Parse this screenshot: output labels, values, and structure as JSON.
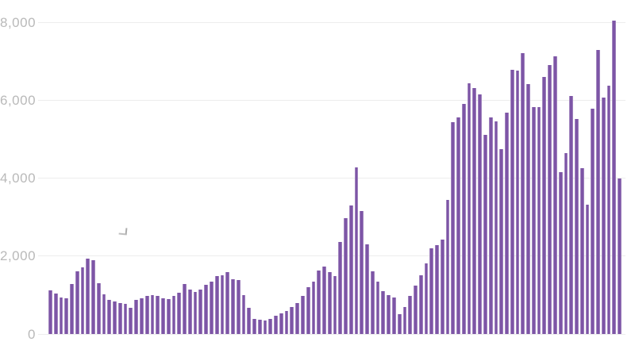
{
  "chart_data": {
    "type": "bar",
    "title": "",
    "xlabel": "",
    "ylabel": "",
    "ylim": [
      0,
      8000
    ],
    "y_ticks": [
      0,
      2000,
      4000,
      6000,
      8000
    ],
    "y_tick_labels": [
      "0",
      "2,000",
      "4,000",
      "6,000",
      "8,000"
    ],
    "x_axis_labels_visible": false,
    "grid": "horizontal",
    "legend": "none",
    "bar_color": "#7d55a6",
    "gridline_color": "#ededed",
    "tick_label_color": "#b9b9b9",
    "background_color": "#ffffff",
    "values": [
      1120,
      1040,
      940,
      920,
      1280,
      1610,
      1710,
      1930,
      1890,
      1300,
      1020,
      880,
      840,
      790,
      770,
      670,
      880,
      920,
      980,
      1000,
      980,
      920,
      900,
      980,
      1060,
      1280,
      1140,
      1080,
      1140,
      1260,
      1340,
      1490,
      1510,
      1590,
      1410,
      1380,
      1000,
      670,
      390,
      370,
      350,
      390,
      470,
      530,
      600,
      700,
      800,
      980,
      1210,
      1340,
      1630,
      1730,
      1590,
      1490,
      2360,
      2970,
      3290,
      4280,
      3160,
      2300,
      1610,
      1340,
      1100,
      1000,
      930,
      510,
      690,
      980,
      1240,
      1510,
      1810,
      2200,
      2280,
      2420,
      3450,
      5440,
      5560,
      5910,
      6430,
      6320,
      6140,
      5110,
      5550,
      5460,
      4740,
      5670,
      6770,
      6750,
      7210,
      6410,
      5820,
      5820,
      6600,
      6900,
      7130,
      4150,
      4640,
      6110,
      5520,
      4250,
      3310,
      5790,
      7290,
      6070,
      6370,
      8040,
      3990
    ]
  }
}
